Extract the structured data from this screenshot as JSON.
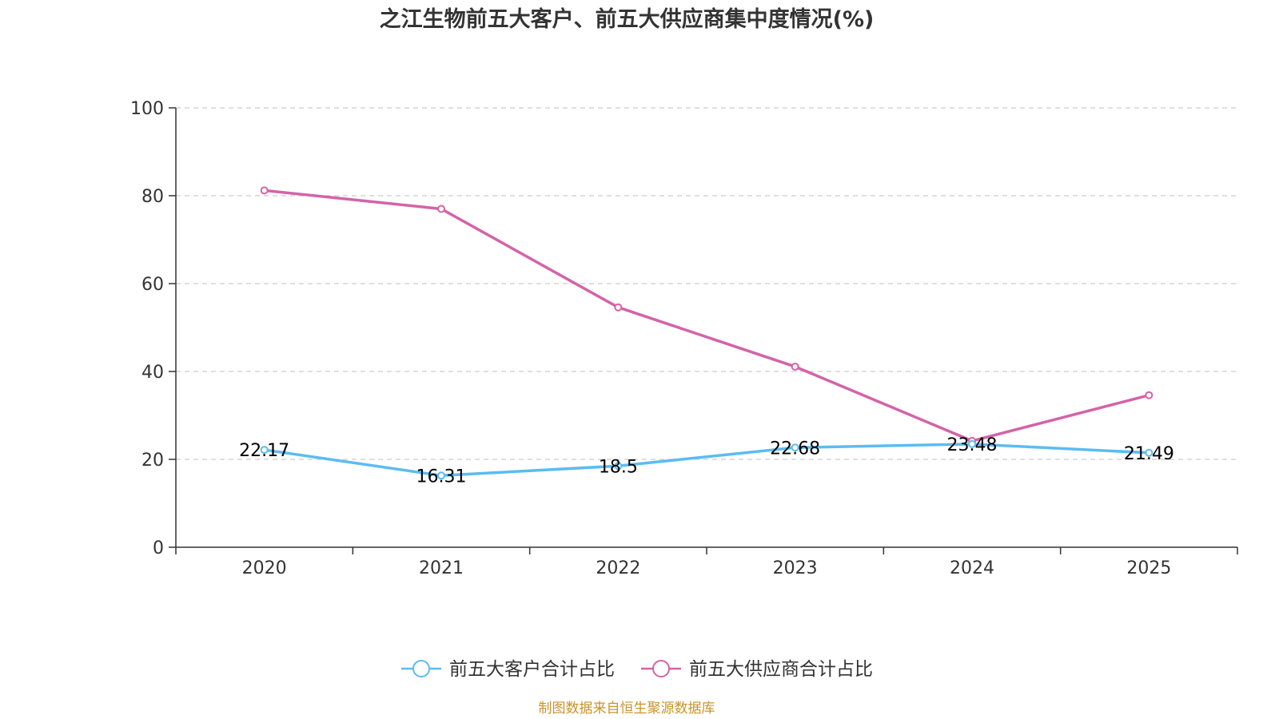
{
  "chart_data": {
    "type": "line",
    "title": "之江生物前五大客户、前五大供应商集中度情况(%)",
    "categories": [
      "2020",
      "2021",
      "2022",
      "2023",
      "2024",
      "2025"
    ],
    "ylim": [
      0,
      100
    ],
    "yticks": [
      "0",
      "20",
      "40",
      "60",
      "80",
      "100"
    ],
    "grid": "horizontal-dashed",
    "legend_position": "bottom-center",
    "series": [
      {
        "name": "前五大客户合计占比",
        "color": "#5bbcf0",
        "values": [
          22.17,
          16.31,
          18.5,
          22.68,
          23.48,
          21.49
        ],
        "labels": [
          "22.17",
          "16.31",
          "18.5",
          "22.68",
          "23.48",
          "21.49"
        ]
      },
      {
        "name": "前五大供应商合计占比",
        "color": "#d463a8",
        "values": [
          81.2,
          77.0,
          54.6,
          41.1,
          24.2,
          34.6
        ]
      }
    ]
  },
  "footer": {
    "source": "制图数据来自恒生聚源数据库",
    "source_color": "#c9932d"
  }
}
